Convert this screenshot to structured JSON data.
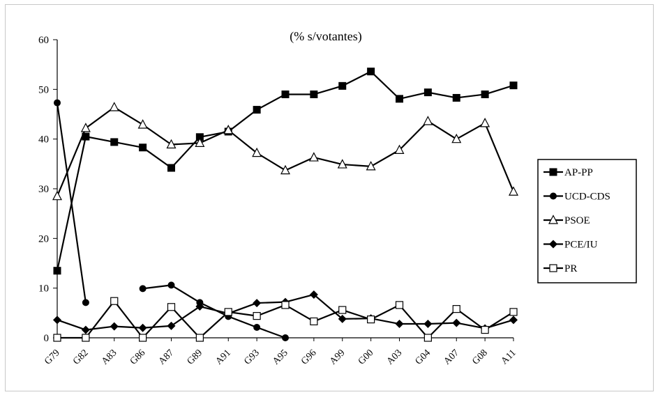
{
  "chart_data": {
    "type": "line",
    "title": "(% s/votantes)",
    "categories": [
      "G79",
      "G82",
      "A83",
      "G86",
      "A87",
      "G89",
      "A91",
      "G93",
      "A95",
      "G96",
      "A99",
      "G00",
      "A03",
      "G04",
      "A07",
      "G08",
      "A11"
    ],
    "ylim": [
      0,
      60
    ],
    "yticks": [
      0,
      10,
      20,
      30,
      40,
      50,
      60
    ],
    "grid": false,
    "legend_position": "right",
    "series": [
      {
        "name": "AP-PP",
        "marker": "square-filled",
        "values": [
          13.5,
          40.5,
          39.4,
          38.3,
          34.2,
          40.4,
          41.5,
          45.9,
          49.0,
          49.0,
          50.7,
          53.6,
          48.1,
          49.4,
          48.3,
          49.0,
          50.8
        ]
      },
      {
        "name": "UCD-CDS",
        "marker": "circle-filled",
        "values": [
          47.3,
          7.1,
          null,
          9.9,
          10.6,
          7.1,
          4.3,
          2.1,
          0,
          null,
          null,
          null,
          null,
          null,
          null,
          null,
          null
        ]
      },
      {
        "name": "PSOE",
        "marker": "triangle-open",
        "values": [
          28.5,
          42.2,
          46.4,
          42.9,
          38.9,
          39.2,
          41.8,
          37.2,
          33.7,
          36.3,
          34.9,
          34.5,
          37.8,
          43.6,
          40.0,
          43.2,
          29.4
        ]
      },
      {
        "name": "PCE/IU",
        "marker": "diamond-filled",
        "values": [
          3.6,
          1.6,
          2.3,
          2.0,
          2.4,
          6.3,
          4.9,
          7.0,
          7.2,
          8.7,
          3.8,
          3.9,
          2.8,
          2.8,
          3.0,
          1.9,
          3.6
        ]
      },
      {
        "name": "PR",
        "marker": "square-open",
        "values": [
          0,
          0,
          7.4,
          0,
          6.2,
          0,
          5.2,
          4.4,
          6.6,
          3.3,
          5.6,
          3.7,
          6.6,
          0,
          5.8,
          1.6,
          5.2
        ]
      }
    ]
  }
}
